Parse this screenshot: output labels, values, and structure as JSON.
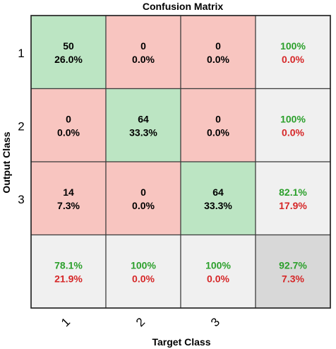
{
  "chart_data": {
    "type": "table",
    "title": "Confusion Matrix",
    "xlabel": "Target Class",
    "ylabel": "Output Class",
    "classes": [
      "1",
      "2",
      "3"
    ],
    "matrix": [
      [
        50,
        0,
        0
      ],
      [
        0,
        64,
        0
      ],
      [
        14,
        0,
        64
      ]
    ],
    "matrix_percent": [
      [
        "26.0%",
        "0.0%",
        "0.0%"
      ],
      [
        "0.0%",
        "33.3%",
        "0.0%"
      ],
      [
        "7.3%",
        "0.0%",
        "33.3%"
      ]
    ],
    "row_summary": [
      {
        "correct": "100%",
        "incorrect": "0.0%"
      },
      {
        "correct": "100%",
        "incorrect": "0.0%"
      },
      {
        "correct": "82.1%",
        "incorrect": "17.9%"
      }
    ],
    "column_summary": [
      {
        "correct": "78.1%",
        "incorrect": "21.9%"
      },
      {
        "correct": "100%",
        "incorrect": "0.0%"
      },
      {
        "correct": "100%",
        "incorrect": "0.0%"
      }
    ],
    "overall": {
      "correct": "92.7%",
      "incorrect": "7.3%"
    }
  },
  "colors": {
    "correct_cell": "#bce5c3",
    "incorrect_cell": "#f8c5c0",
    "summary_cell": "#f0f0f0",
    "overall_cell": "#d8d8d8",
    "correct_text": "#2ca02c",
    "incorrect_text": "#d62728",
    "grid": "#3c3c3c"
  }
}
